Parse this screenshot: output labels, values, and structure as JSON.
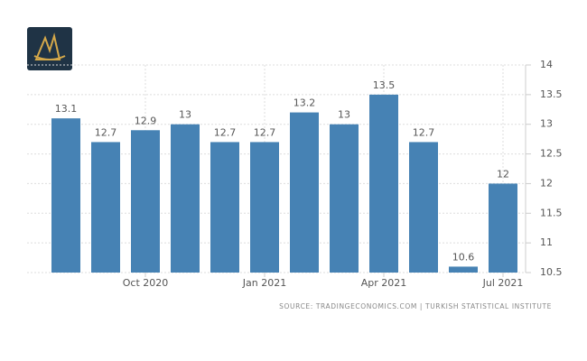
{
  "chart_data": {
    "type": "bar",
    "categories": [
      null,
      null,
      "Oct 2020",
      null,
      null,
      "Jan 2021",
      null,
      null,
      "Apr 2021",
      null,
      null,
      "Jul 2021"
    ],
    "values": [
      13.1,
      12.7,
      12.9,
      13,
      12.7,
      12.7,
      13.2,
      13,
      13.5,
      12.7,
      10.6,
      12
    ],
    "color": "#4682b4",
    "ylim": [
      10.5,
      14
    ],
    "yticks": [
      10.5,
      11,
      11.5,
      12,
      12.5,
      13,
      13.5,
      14
    ],
    "grid": true,
    "source": "SOURCE: TRADINGECONOMICS.COM | TURKISH STATISTICAL INSTITUTE"
  }
}
